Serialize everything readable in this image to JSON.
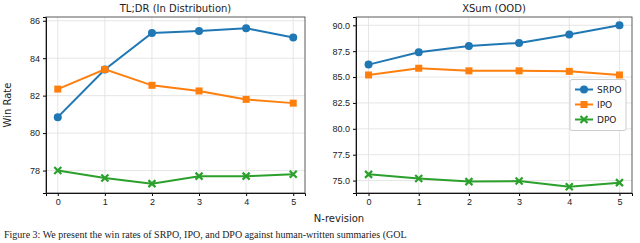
{
  "chart_data": [
    {
      "type": "line",
      "title": "TL;DR (In Distribution)",
      "y_label": "Win Rate",
      "x": [
        0,
        1,
        2,
        3,
        4,
        5
      ],
      "xlim": [
        -0.25,
        5.25
      ],
      "xticks": [
        0,
        1,
        2,
        3,
        4,
        5
      ],
      "ylim": [
        76.8,
        86.2
      ],
      "yticks": [
        78,
        80,
        82,
        84,
        86
      ],
      "grid": true,
      "series": [
        {
          "name": "SRPO",
          "color": "#1f77b4",
          "marker": "circle",
          "values": [
            80.85,
            83.4,
            85.35,
            85.45,
            85.6,
            85.1
          ]
        },
        {
          "name": "IPO",
          "color": "#ff7f0e",
          "marker": "square",
          "values": [
            82.35,
            83.4,
            82.55,
            82.25,
            81.8,
            81.6
          ]
        },
        {
          "name": "DPO",
          "color": "#2ca02c",
          "marker": "x",
          "values": [
            78.0,
            77.6,
            77.3,
            77.7,
            77.7,
            77.8
          ]
        }
      ]
    },
    {
      "type": "line",
      "title": "XSum (OOD)",
      "x": [
        0,
        1,
        2,
        3,
        4,
        5
      ],
      "xlim": [
        -0.25,
        5.25
      ],
      "xticks": [
        0,
        1,
        2,
        3,
        4,
        5
      ],
      "ylim": [
        73.8,
        90.8
      ],
      "yticks": [
        {
          "value": 75,
          "label": "75.0"
        },
        {
          "value": 77.5,
          "label": "77.5"
        },
        {
          "value": 80,
          "label": "80.0"
        },
        {
          "value": 82.5,
          "label": "82.5"
        },
        {
          "value": 85,
          "label": "85.0"
        },
        {
          "value": 87.5,
          "label": "87.5"
        },
        {
          "value": 90,
          "label": "90.0"
        }
      ],
      "grid": true,
      "legend": "center right",
      "series": [
        {
          "name": "SRPO",
          "color": "#1f77b4",
          "marker": "circle",
          "values": [
            86.2,
            87.4,
            88.0,
            88.3,
            89.1,
            90.0
          ]
        },
        {
          "name": "IPO",
          "color": "#ff7f0e",
          "marker": "square",
          "values": [
            85.2,
            85.85,
            85.6,
            85.6,
            85.55,
            85.2
          ]
        },
        {
          "name": "DPO",
          "color": "#2ca02c",
          "marker": "x",
          "values": [
            75.6,
            75.2,
            74.9,
            74.95,
            74.4,
            74.8
          ]
        }
      ]
    }
  ],
  "x_label": "N-revision",
  "caption": "Figure 3: We present the win rates of SRPO, IPO, and DPO against human-written summaries (GOL"
}
